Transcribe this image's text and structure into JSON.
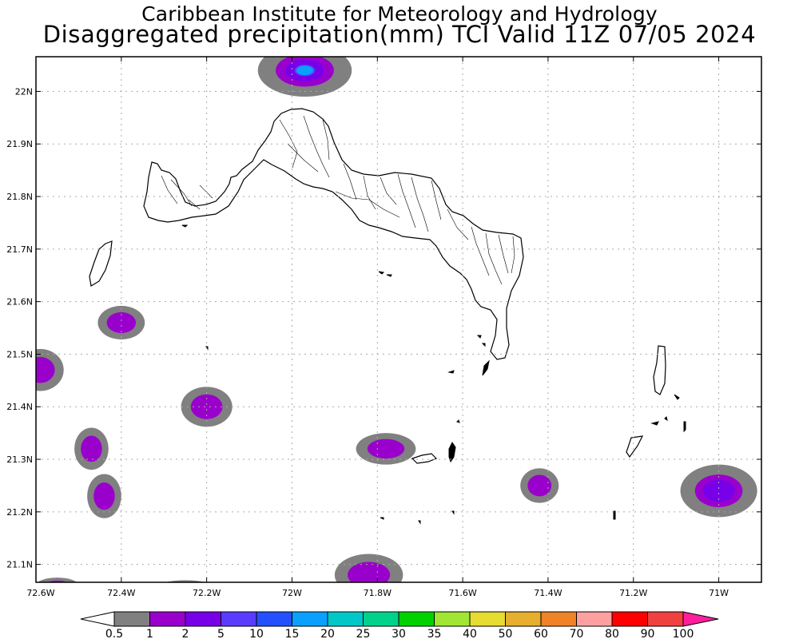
{
  "header": {
    "institution": "Caribbean Institute for Meteorology and Hydrology",
    "product": "Disaggregated precipitation(mm) TCI Valid 11Z 07/05 2024"
  },
  "map": {
    "lon_range": [
      -72.6,
      -70.9
    ],
    "lat_range": [
      21.066,
      22.066
    ],
    "lon_ticks": [
      {
        "value": -72.6,
        "label": "72.6W"
      },
      {
        "value": -72.4,
        "label": "72.4W"
      },
      {
        "value": -72.2,
        "label": "72.2W"
      },
      {
        "value": -72.0,
        "label": "72W"
      },
      {
        "value": -71.8,
        "label": "71.8W"
      },
      {
        "value": -71.6,
        "label": "71.6W"
      },
      {
        "value": -71.4,
        "label": "71.4W"
      },
      {
        "value": -71.2,
        "label": "71.2W"
      },
      {
        "value": -71.0,
        "label": "71W"
      }
    ],
    "lat_ticks": [
      {
        "value": 22.0,
        "label": "22N"
      },
      {
        "value": 21.9,
        "label": "21.9N"
      },
      {
        "value": 21.8,
        "label": "21.8N"
      },
      {
        "value": 21.7,
        "label": "21.7N"
      },
      {
        "value": 21.6,
        "label": "21.6N"
      },
      {
        "value": 21.5,
        "label": "21.5N"
      },
      {
        "value": 21.4,
        "label": "21.4N"
      },
      {
        "value": 21.3,
        "label": "21.3N"
      },
      {
        "value": 21.2,
        "label": "21.2N"
      },
      {
        "value": 21.1,
        "label": "21.1N"
      }
    ],
    "grid": true,
    "grid_color": "#aaaaaa",
    "precip_cells": [
      {
        "lon": -71.97,
        "lat": 22.04,
        "rlon": 0.11,
        "rlat": 0.05,
        "max_level": 5
      },
      {
        "lon": -72.4,
        "lat": 21.56,
        "rlon": 0.055,
        "rlat": 0.032,
        "max_level": 1
      },
      {
        "lon": -72.59,
        "lat": 21.47,
        "rlon": 0.055,
        "rlat": 0.04,
        "max_level": 1
      },
      {
        "lon": -72.2,
        "lat": 21.4,
        "rlon": 0.06,
        "rlat": 0.038,
        "max_level": 1
      },
      {
        "lon": -72.47,
        "lat": 21.32,
        "rlon": 0.04,
        "rlat": 0.04,
        "max_level": 1
      },
      {
        "lon": -72.44,
        "lat": 21.23,
        "rlon": 0.04,
        "rlat": 0.042,
        "max_level": 1
      },
      {
        "lon": -71.78,
        "lat": 21.32,
        "rlon": 0.07,
        "rlat": 0.03,
        "max_level": 1
      },
      {
        "lon": -71.42,
        "lat": 21.25,
        "rlon": 0.045,
        "rlat": 0.033,
        "max_level": 1
      },
      {
        "lon": -71.0,
        "lat": 21.24,
        "rlon": 0.09,
        "rlat": 0.05,
        "max_level": 2
      },
      {
        "lon": -71.82,
        "lat": 21.08,
        "rlon": 0.08,
        "rlat": 0.04,
        "max_level": 1
      },
      {
        "lon": -72.55,
        "lat": 21.06,
        "rlon": 0.05,
        "rlat": 0.015,
        "max_level": 1
      },
      {
        "lon": -72.25,
        "lat": 21.05,
        "rlon": 0.08,
        "rlat": 0.02,
        "max_level": 0
      }
    ],
    "land_color": "#ffffff",
    "coast_color": "#000000"
  },
  "legend": {
    "labels": [
      "0.5",
      "1",
      "2",
      "5",
      "10",
      "15",
      "20",
      "25",
      "30",
      "35",
      "40",
      "50",
      "60",
      "70",
      "80",
      "90",
      "100"
    ],
    "colors": [
      "#808080",
      "#9a00cc",
      "#7800e8",
      "#5a3cff",
      "#2450ff",
      "#0aa0ff",
      "#00c8c8",
      "#00d28c",
      "#00d200",
      "#a0e632",
      "#e6dc32",
      "#e6af2d",
      "#f08228",
      "#ffa0a0",
      "#ff0000",
      "#f04040"
    ],
    "under_color": "#ffffff",
    "over_color": "#ff1e9e"
  }
}
